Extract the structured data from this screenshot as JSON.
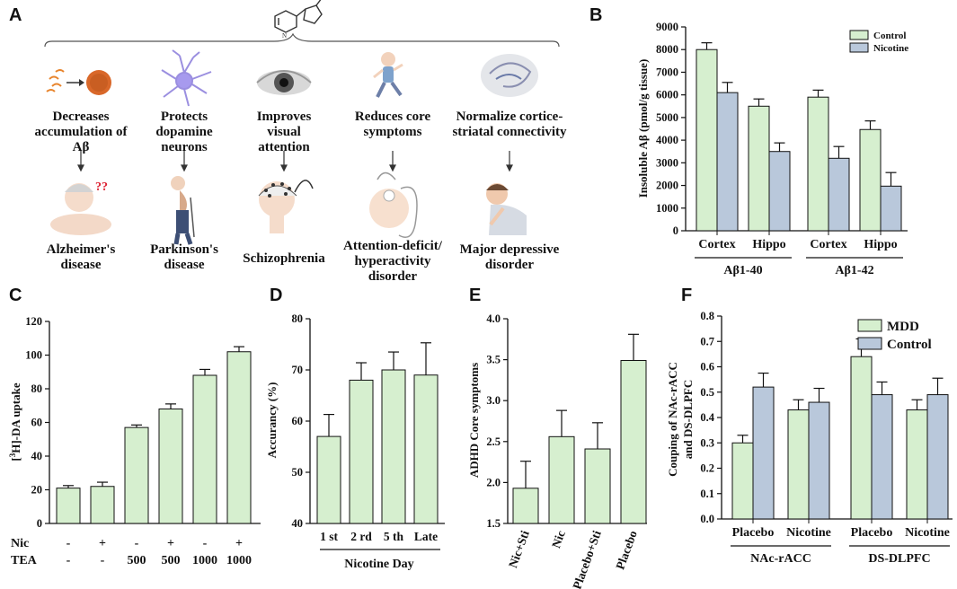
{
  "panels": {
    "A": "A",
    "B": "B",
    "C": "C",
    "D": "D",
    "E": "E",
    "F": "F"
  },
  "panel_a": {
    "effects": [
      {
        "text": "Decreases accumulation of Aβ",
        "icon": "amyloid-aggregation-icon",
        "disease": "Alzheimer's disease",
        "disease_icon": "elderly-patient-icon"
      },
      {
        "text": "Protects dopamine neurons",
        "icon": "neuron-icon",
        "disease": "Parkinson's disease",
        "disease_icon": "stooped-patient-icon"
      },
      {
        "text": "Improves visual attention",
        "icon": "eye-icon",
        "disease": "Schizophrenia",
        "disease_icon": "eeg-head-icon"
      },
      {
        "text": "Reduces core symptoms",
        "icon": "running-child-icon",
        "disease": "Attention-deficit/ hyperactivity disorder",
        "disease_icon": "child-head-electrodes-icon"
      },
      {
        "text": "Normalize cortice-striatal connectivity",
        "icon": "brain-section-icon",
        "disease": "Major depressive disorder",
        "disease_icon": "depressed-person-icon"
      }
    ]
  },
  "chart_data": [
    {
      "id": "B",
      "type": "bar",
      "categories": [
        "Cortex",
        "Hippo",
        "Cortex",
        "Hippo"
      ],
      "groups": [
        {
          "label": "Aβ1-40",
          "categories": [
            0,
            1
          ]
        },
        {
          "label": "Aβ1-42",
          "categories": [
            2,
            3
          ]
        }
      ],
      "series": [
        {
          "name": "Control",
          "color": "#d6efcf",
          "values": [
            8000,
            5500,
            5900,
            4470
          ],
          "errors": [
            300,
            320,
            310,
            380
          ]
        },
        {
          "name": "Nicotine",
          "color": "#b9c8db",
          "values": [
            6100,
            3500,
            3200,
            1970
          ],
          "errors": [
            450,
            380,
            520,
            600
          ]
        }
      ],
      "ylabel": "Insoluble Aβ (pmol/g tissue)",
      "ylim": [
        0,
        9000
      ],
      "yticks": [
        0,
        1000,
        2000,
        3000,
        4000,
        5000,
        6000,
        7000,
        8000,
        9000
      ],
      "legend": "top-right"
    },
    {
      "id": "C",
      "type": "bar",
      "categories": [
        "1",
        "2",
        "3",
        "4",
        "5",
        "6"
      ],
      "values": [
        21,
        22,
        57,
        68,
        88,
        102
      ],
      "errors": [
        1.5,
        2.5,
        1.5,
        3,
        3.5,
        3
      ],
      "color": "#d6efcf",
      "ylabel_sup": "3",
      "ylabel_pre": "[",
      "ylabel_post": "H]-DA uptake",
      "ylim": [
        0,
        120
      ],
      "yticks": [
        0,
        20,
        40,
        60,
        80,
        100,
        120
      ],
      "row_labels": [
        {
          "name": "Nic",
          "cells": [
            "-",
            "+",
            "-",
            "+",
            "-",
            "+"
          ]
        },
        {
          "name": "TEA",
          "cells": [
            "-",
            "-",
            "500",
            "500",
            "1000",
            "1000"
          ]
        }
      ]
    },
    {
      "id": "D",
      "type": "bar",
      "categories": [
        "1 st",
        "2 rd",
        "5 th",
        "Late"
      ],
      "values": [
        57,
        68,
        70,
        69
      ],
      "errors": [
        4.3,
        3.4,
        3.5,
        6.3
      ],
      "color": "#d6efcf",
      "ylabel": "Accurancy (%)",
      "xlabel": "Nicotine Day",
      "ylim": [
        40,
        80
      ],
      "yticks": [
        40,
        50,
        60,
        70,
        80
      ]
    },
    {
      "id": "E",
      "type": "bar",
      "categories": [
        "Nic+Sti",
        "Nic",
        "Placebo+Sti",
        "Placebo"
      ],
      "values": [
        1.93,
        2.56,
        2.41,
        3.49
      ],
      "errors": [
        0.33,
        0.32,
        0.32,
        0.32
      ],
      "color": "#d6efcf",
      "ylabel": "ADHD Core symptoms",
      "ylim": [
        1.5,
        4.0
      ],
      "yticks": [
        "1.5",
        "2.0",
        "2.5",
        "3.0",
        "3.5",
        "4.0"
      ]
    },
    {
      "id": "F",
      "type": "bar",
      "categories": [
        "Placebo",
        "Nicotine",
        "Placebo",
        "Nicotine"
      ],
      "groups": [
        {
          "label": "NAc-rACC",
          "categories": [
            0,
            1
          ]
        },
        {
          "label": "DS-DLPFC",
          "categories": [
            2,
            3
          ]
        }
      ],
      "series": [
        {
          "name": "MDD",
          "color": "#d6efcf",
          "values": [
            0.3,
            0.43,
            0.64,
            0.43
          ],
          "errors": [
            0.03,
            0.04,
            0.07,
            0.04
          ]
        },
        {
          "name": "Control",
          "color": "#b9c8db",
          "values": [
            0.52,
            0.46,
            0.49,
            0.49
          ],
          "errors": [
            0.055,
            0.055,
            0.05,
            0.065
          ]
        }
      ],
      "ylabel": "Couping of NAc-rACC and DS-DLPFC",
      "ylim": [
        0,
        0.8
      ],
      "yticks": [
        "0.0",
        "0.1",
        "0.2",
        "0.3",
        "0.4",
        "0.5",
        "0.6",
        "0.7",
        "0.8"
      ],
      "legend": "top-right"
    }
  ]
}
